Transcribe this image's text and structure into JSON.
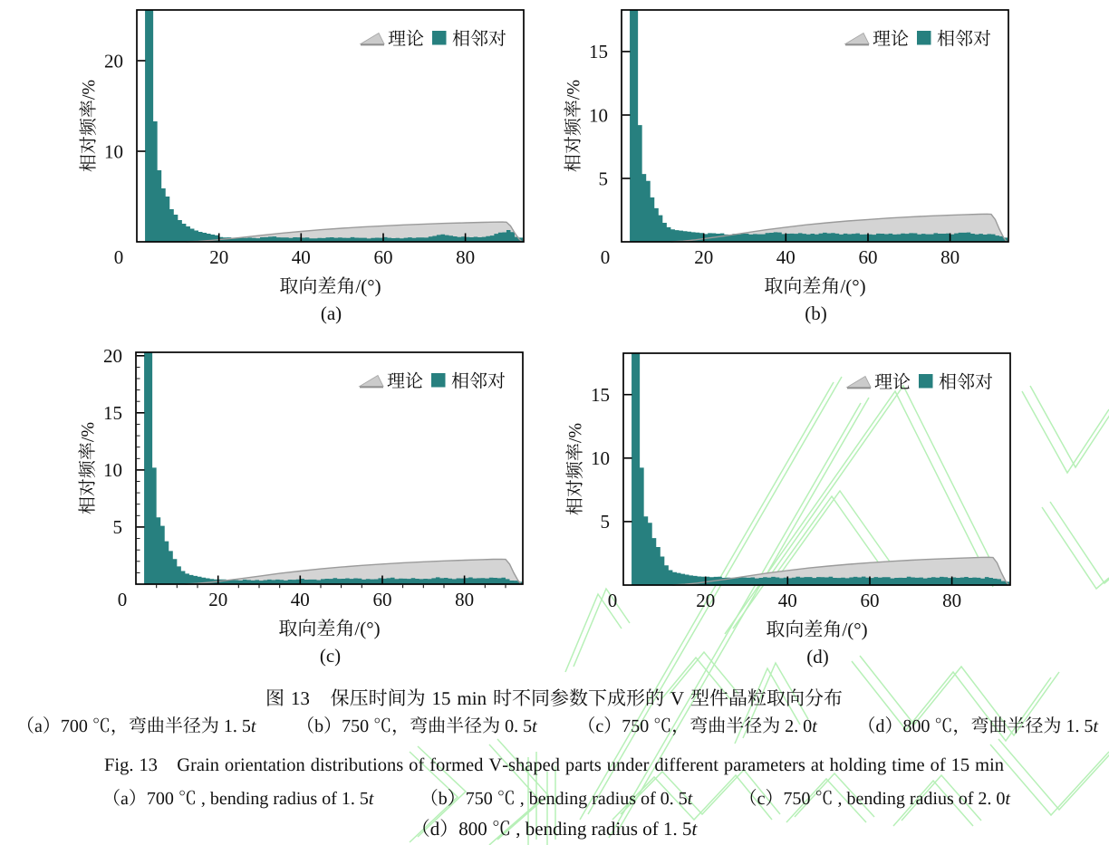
{
  "colors": {
    "background": "#ffffff",
    "bars": "#27807f",
    "theory_fill": "#d4d4d4",
    "theory_edge": "#9b9b9b",
    "axis": "#000000",
    "text": "#111111",
    "watermark": "#b7f0b7"
  },
  "figure": {
    "caption_cn_title": "图 13　保压时间为 15 min 时不同参数下成形的 V 型件晶粒取向分布",
    "caption_cn_params": "（a）700 ℃，弯曲半径为 1. 5t　　（b）750 ℃，弯曲半径为 0. 5t　　（c）750 ℃，弯曲半径为 2. 0t　　（d）800 ℃，弯曲半径为 1. 5t",
    "caption_en_title": "Fig. 13　Grain orientation distributions of formed V-shaped parts under different parameters at holding time of 15 min",
    "caption_en_params1": "（a）700 ℃ , bending radius of 1. 5t　　（b）750 ℃ , bending radius of 0. 5t　　（c）750 ℃ , bending radius of 2. 0t",
    "caption_en_params2": "（d）800 ℃ , bending radius of 1. 5t"
  },
  "theory_curve": {
    "label": "理论",
    "points": [
      [
        12,
        0
      ],
      [
        15,
        0.06
      ],
      [
        18,
        0.16
      ],
      [
        20,
        0.24
      ],
      [
        25,
        0.46
      ],
      [
        30,
        0.7
      ],
      [
        35,
        0.94
      ],
      [
        40,
        1.15
      ],
      [
        45,
        1.34
      ],
      [
        50,
        1.5
      ],
      [
        55,
        1.64
      ],
      [
        60,
        1.76
      ],
      [
        65,
        1.87
      ],
      [
        70,
        1.96
      ],
      [
        75,
        2.04
      ],
      [
        80,
        2.1
      ],
      [
        84,
        2.15
      ],
      [
        87,
        2.18
      ],
      [
        89,
        2.19
      ],
      [
        90,
        2.17
      ],
      [
        91,
        1.75
      ],
      [
        92,
        1.0
      ],
      [
        93,
        0.35
      ],
      [
        93.8,
        0
      ]
    ]
  },
  "chart_data": [
    {
      "panel": "(a)",
      "type": "bar",
      "xlabel": "取向差角/(°)",
      "ylabel": "相对频率/%",
      "legend": [
        "理论",
        "相邻对"
      ],
      "xlim": [
        0,
        94.2
      ],
      "ylim": [
        0,
        25.6
      ],
      "xticks": [
        0,
        20,
        40,
        60,
        80
      ],
      "yticks": [
        10,
        20
      ],
      "x_minor_step": null,
      "y_minor_step": null,
      "bin_start": 2,
      "bin_width": 1,
      "bar_values": [
        26,
        26,
        13.3,
        7.9,
        5.9,
        5.0,
        3.6,
        3.0,
        2.4,
        2.0,
        1.7,
        1.45,
        1.25,
        1.1,
        1.0,
        0.9,
        0.8,
        0.72,
        0.53,
        0.47,
        0.49,
        0.42,
        0.45,
        0.49,
        0.43,
        0.46,
        0.42,
        0.39,
        0.5,
        0.51,
        0.56,
        0.59,
        0.49,
        0.48,
        0.47,
        0.42,
        0.5,
        0.49,
        0.45,
        0.47,
        0.38,
        0.37,
        0.42,
        0.41,
        0.48,
        0.5,
        0.44,
        0.47,
        0.44,
        0.43,
        0.51,
        0.45,
        0.44,
        0.44,
        0.36,
        0.42,
        0.45,
        0.44,
        0.51,
        0.44,
        0.4,
        0.43,
        0.38,
        0.44,
        0.49,
        0.43,
        0.47,
        0.47,
        0.46,
        0.57,
        0.65,
        0.76,
        0.82,
        0.74,
        0.67,
        0.6,
        0.53,
        0.58,
        0.53,
        0.5,
        0.55,
        0.5,
        0.54,
        0.63,
        0.69,
        0.89,
        1.02,
        1.05,
        1.3,
        1.08,
        0.54,
        0.46
      ]
    },
    {
      "panel": "(b)",
      "type": "bar",
      "xlabel": "取向差角/(°)",
      "ylabel": "相对频率/%",
      "legend": [
        "理论",
        "相邻对"
      ],
      "xlim": [
        0,
        94.2
      ],
      "ylim": [
        0,
        18.28
      ],
      "xticks": [
        0,
        20,
        40,
        60,
        80
      ],
      "yticks": [
        5,
        10,
        15
      ],
      "x_minor_step": null,
      "y_minor_step": null,
      "bin_start": 2,
      "bin_width": 1,
      "bar_values": [
        19,
        19,
        9.2,
        5.35,
        4.8,
        3.5,
        2.65,
        2.1,
        1.5,
        1.15,
        0.98,
        0.92,
        0.88,
        0.84,
        0.8,
        0.76,
        0.73,
        0.7,
        0.62,
        0.69,
        0.68,
        0.64,
        0.67,
        0.58,
        0.57,
        0.63,
        0.59,
        0.64,
        0.64,
        0.58,
        0.62,
        0.6,
        0.6,
        0.7,
        0.71,
        0.76,
        0.74,
        0.62,
        0.64,
        0.65,
        0.63,
        0.69,
        0.63,
        0.59,
        0.64,
        0.59,
        0.66,
        0.72,
        0.67,
        0.7,
        0.65,
        0.58,
        0.65,
        0.61,
        0.63,
        0.67,
        0.58,
        0.59,
        0.59,
        0.56,
        0.65,
        0.64,
        0.61,
        0.65,
        0.58,
        0.6,
        0.66,
        0.63,
        0.69,
        0.68,
        0.59,
        0.63,
        0.6,
        0.6,
        0.69,
        0.64,
        0.64,
        0.66,
        0.59,
        0.67,
        0.72,
        0.72,
        0.74,
        0.64,
        0.59,
        0.63,
        0.57,
        0.62,
        0.6,
        0.49,
        0.44,
        0.33
      ]
    },
    {
      "panel": "(c)",
      "type": "bar",
      "xlabel": "取向差角/(°)",
      "ylabel": "相对频率/%",
      "legend": [
        "理论",
        "相邻对"
      ],
      "xlim": [
        0,
        94.2
      ],
      "ylim": [
        0,
        20.3
      ],
      "xticks": [
        0,
        20,
        40,
        60,
        80
      ],
      "yticks": [
        5,
        10,
        15,
        20
      ],
      "x_minor_step": 5,
      "y_minor_step": 1,
      "bin_start": 2,
      "bin_width": 1,
      "bar_values": [
        21,
        21,
        10.2,
        5.85,
        5.1,
        3.76,
        2.9,
        2.2,
        1.56,
        1.15,
        0.92,
        0.8,
        0.72,
        0.65,
        0.58,
        0.52,
        0.46,
        0.42,
        0.42,
        0.42,
        0.32,
        0.36,
        0.36,
        0.33,
        0.41,
        0.37,
        0.33,
        0.37,
        0.31,
        0.36,
        0.41,
        0.37,
        0.41,
        0.38,
        0.33,
        0.4,
        0.39,
        0.42,
        0.48,
        0.4,
        0.41,
        0.41,
        0.36,
        0.45,
        0.48,
        0.47,
        0.54,
        0.47,
        0.48,
        0.52,
        0.47,
        0.52,
        0.5,
        0.41,
        0.46,
        0.43,
        0.44,
        0.53,
        0.49,
        0.53,
        0.57,
        0.46,
        0.5,
        0.49,
        0.47,
        0.54,
        0.48,
        0.45,
        0.48,
        0.46,
        0.53,
        0.6,
        0.53,
        0.55,
        0.5,
        0.45,
        0.52,
        0.51,
        0.54,
        0.59,
        0.51,
        0.53,
        0.54,
        0.51,
        0.58,
        0.55,
        0.53,
        0.58,
        0.45,
        0.32,
        0.31,
        0.21
      ]
    },
    {
      "panel": "(d)",
      "type": "bar",
      "xlabel": "取向差角/(°)",
      "ylabel": "相对频率/%",
      "legend": [
        "理论",
        "相邻对"
      ],
      "xlim": [
        0,
        94.2
      ],
      "ylim": [
        0,
        18.26
      ],
      "xticks": [
        0,
        20,
        40,
        60,
        80
      ],
      "yticks": [
        5,
        10,
        15
      ],
      "x_minor_step": null,
      "y_minor_step": null,
      "bin_start": 2,
      "bin_width": 1,
      "bar_values": [
        19,
        19,
        9.25,
        5.4,
        4.9,
        3.7,
        3.0,
        2.25,
        1.55,
        1.18,
        1.02,
        0.95,
        0.88,
        0.82,
        0.76,
        0.72,
        0.68,
        0.66,
        0.66,
        0.62,
        0.65,
        0.66,
        0.57,
        0.59,
        0.58,
        0.55,
        0.64,
        0.6,
        0.58,
        0.61,
        0.53,
        0.57,
        0.62,
        0.59,
        0.65,
        0.61,
        0.54,
        0.59,
        0.54,
        0.59,
        0.66,
        0.6,
        0.63,
        0.63,
        0.56,
        0.63,
        0.62,
        0.61,
        0.66,
        0.57,
        0.56,
        0.59,
        0.54,
        0.61,
        0.65,
        0.61,
        0.67,
        0.59,
        0.56,
        0.63,
        0.59,
        0.62,
        0.62,
        0.53,
        0.57,
        0.58,
        0.57,
        0.66,
        0.61,
        0.58,
        0.6,
        0.53,
        0.58,
        0.62,
        0.59,
        0.65,
        0.62,
        0.56,
        0.61,
        0.57,
        0.6,
        0.64,
        0.57,
        0.6,
        0.58,
        0.52,
        0.63,
        0.57,
        0.51,
        0.47,
        0.31,
        0.27
      ]
    }
  ]
}
